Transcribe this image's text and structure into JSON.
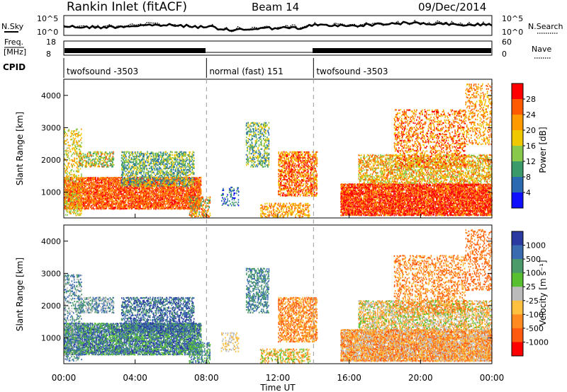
{
  "header": {
    "title": "Rankin Inlet (fitACF)",
    "beam": "Beam 14",
    "date": "09/Dec/2014"
  },
  "strips": {
    "nsky": {
      "label": "N.Sky",
      "ticks": [
        "10^5",
        "10^0"
      ]
    },
    "nsearch": {
      "label": "N.Search",
      "ticks": [
        "10^5",
        "10^0"
      ]
    },
    "freq": {
      "label_line1": "Freq.",
      "label_line2": "[MHz]",
      "ticks": [
        "18",
        "8"
      ]
    },
    "nave": {
      "label": "Nave",
      "ticks": [
        "60",
        "0"
      ]
    },
    "cpid": {
      "label": "CPID",
      "segments": [
        {
          "name": "twofsound -3503",
          "start_hour": 0,
          "end_hour": 8
        },
        {
          "name": "normal (fast) 151",
          "start_hour": 8,
          "end_hour": 14
        },
        {
          "name": "twofsound -3503",
          "start_hour": 14,
          "end_hour": 24
        }
      ]
    }
  },
  "chart_data": [
    {
      "type": "heatmap",
      "parameter": "Power",
      "xlabel": "",
      "ylabel": "Slant Range [km]",
      "xlim_hours": [
        0,
        24
      ],
      "ylim": [
        200,
        4500
      ],
      "yticks": [
        "1000",
        "2000",
        "3000",
        "4000"
      ],
      "colorbar": {
        "label": "Power [dB]",
        "ticks": [
          "28",
          "24",
          "20",
          "16",
          "12",
          "8",
          "4"
        ],
        "colors": [
          "#ff0000",
          "#ff5a00",
          "#ff9a00",
          "#f0c800",
          "#88c84a",
          "#3a9a6a",
          "#2a6ab0",
          "#1010ff"
        ]
      }
    },
    {
      "type": "heatmap",
      "parameter": "Velocity",
      "xlabel": "Time UT",
      "ylabel": "Slant Range [km]",
      "xlim_hours": [
        0,
        24
      ],
      "ylim": [
        200,
        4500
      ],
      "yticks": [
        "1000",
        "2000",
        "3000",
        "4000"
      ],
      "xticks": [
        "00:00",
        "04:00",
        "08:00",
        "12:00",
        "16:00",
        "20:00",
        "00:00"
      ],
      "colorbar": {
        "label": "Velocity [m s⁻¹]",
        "ticks": [
          "1000",
          "500",
          "100",
          "25",
          "-25",
          "-100",
          "-500",
          "-1000"
        ],
        "colors": [
          "#2a3aa0",
          "#3a6ab0",
          "#4a9a6a",
          "#58c030",
          "#bbbbbb",
          "#ffbf3f",
          "#ff8a20",
          "#ff5a10",
          "#ff0000"
        ]
      }
    }
  ]
}
